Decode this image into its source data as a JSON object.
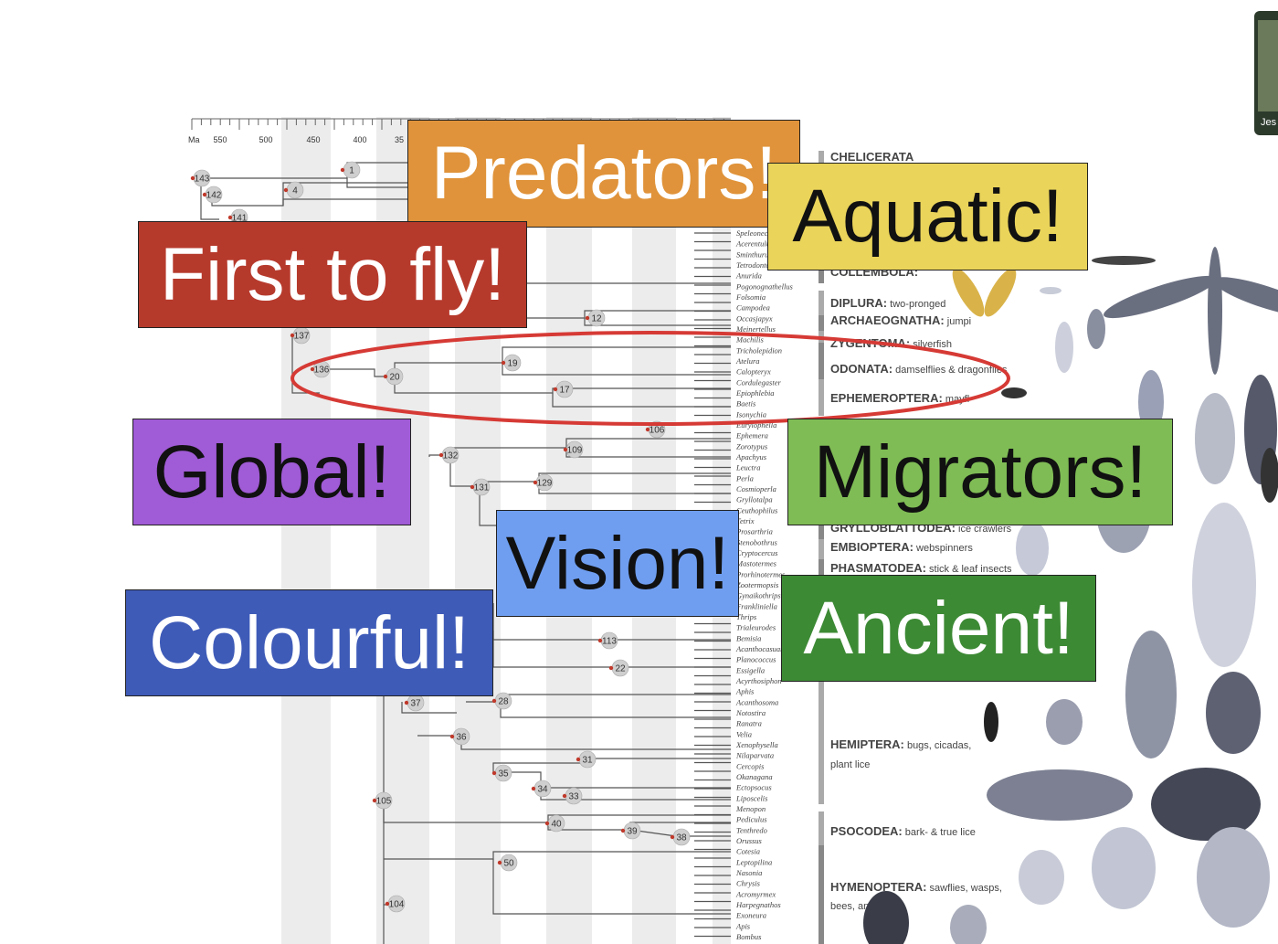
{
  "scale": {
    "unit": "Ma",
    "ticks": [
      "550",
      "500",
      "450",
      "400",
      "35"
    ]
  },
  "nodes": [
    "143",
    "142",
    "141",
    "1",
    "4",
    "12",
    "137",
    "136",
    "20",
    "19",
    "17",
    "132",
    "109",
    "106",
    "131",
    "129",
    "113",
    "22",
    "37",
    "28",
    "36",
    "31",
    "35",
    "34",
    "33",
    "105",
    "40",
    "39",
    "38",
    "50",
    "104"
  ],
  "orders": [
    {
      "bold": "CHELICERATA",
      "rest": ""
    },
    {
      "bold": "COLLEMBOLA:",
      "rest": ""
    },
    {
      "bold": "DIPLURA:",
      "rest": " two-pronged"
    },
    {
      "bold": "ARCHAEOGNATHA:",
      "rest": " jumpi"
    },
    {
      "bold": "ZYGENTOMA:",
      "rest": " silverfish"
    },
    {
      "bold": "ODONATA:",
      "rest": " damselflies & dragonflies"
    },
    {
      "bold": "EPHEMEROPTERA:",
      "rest": " mayfl"
    },
    {
      "bold": "GRYLLOBLATTODEA:",
      "rest": " ice crawlers"
    },
    {
      "bold": "EMBIOPTERA:",
      "rest": " webspinners"
    },
    {
      "bold": "PHASMATODEA:",
      "rest": " stick & leaf insects"
    },
    {
      "bold": "HEMIPTERA:",
      "rest": " bugs, cicadas,"
    },
    {
      "bold": "",
      "rest": "plant lice"
    },
    {
      "bold": "PSOCODEA:",
      "rest": " bark- & true lice"
    },
    {
      "bold": "HYMENOPTERA:",
      "rest": " sawflies, wasps,"
    },
    {
      "bold": "",
      "rest": "bees, ants"
    }
  ],
  "taxa": [
    "Speleonectes",
    "Acerentulus",
    "Sminthurus",
    "Tetrodontophora",
    "Anurida",
    "Pogonognathellus",
    "Folsomia",
    "Campodea",
    "Occasjapyx",
    "Meinertellus",
    "Machilis",
    "Tricholepidion",
    "Atelura",
    "Calopteryx",
    "Cordulegaster",
    "Epiophlebia",
    "Baetis",
    "Isonychia",
    "Eurylophella",
    "Ephemera",
    "Zorotypus",
    "Apachyus",
    "Leuctra",
    "Perla",
    "Cosmioperla",
    "Gryllotalpa",
    "Ceuthophilus",
    "Tetrix",
    "Prosarthria",
    "Stenobothrus",
    "Cryptocercus",
    "Mastotermes",
    "Prorhinotermes",
    "Zootermopsis",
    "Gynaikothrips",
    "Frankliniella",
    "Thrips",
    "Trialeurodes",
    "Bemisia",
    "Acanthocasuarina",
    "Planococcus",
    "Essigella",
    "Acyrthosiphon",
    "Aphis",
    "Acanthosoma",
    "Notostira",
    "Ranatra",
    "Velia",
    "Xenophysella",
    "Nilaparvata",
    "Cercopis",
    "Okanagana",
    "Ectopsocus",
    "Liposcelis",
    "Menopon",
    "Pediculus",
    "Tenthredo",
    "Orussus",
    "Cotesia",
    "Leptopilina",
    "Nasonia",
    "Chrysis",
    "Acromyrmex",
    "Harpegnathos",
    "Exoneura",
    "Apis",
    "Bombus"
  ],
  "labels": [
    {
      "text": "Predators!",
      "bg": "#e0933a",
      "fg": "#ffffff"
    },
    {
      "text": "Aquatic!",
      "bg": "#ead45a",
      "fg": "#111111"
    },
    {
      "text": "First to fly!",
      "bg": "#b63a2c",
      "fg": "#ffffff"
    },
    {
      "text": "Global!",
      "bg": "#a05bd6",
      "fg": "#111111"
    },
    {
      "text": "Migrators!",
      "bg": "#7fbc55",
      "fg": "#111111"
    },
    {
      "text": "Vision!",
      "bg": "#6f9ef0",
      "fg": "#111111"
    },
    {
      "text": "Colourful!",
      "bg": "#3e5bb8",
      "fg": "#ffffff"
    },
    {
      "text": "Ancient!",
      "bg": "#3d8a35",
      "fg": "#ffffff"
    }
  ],
  "camera": {
    "name": "Jes"
  },
  "colors": {
    "highlight": "#d63a35",
    "node_fill": "#cfcfcf",
    "band": "#ececec"
  }
}
